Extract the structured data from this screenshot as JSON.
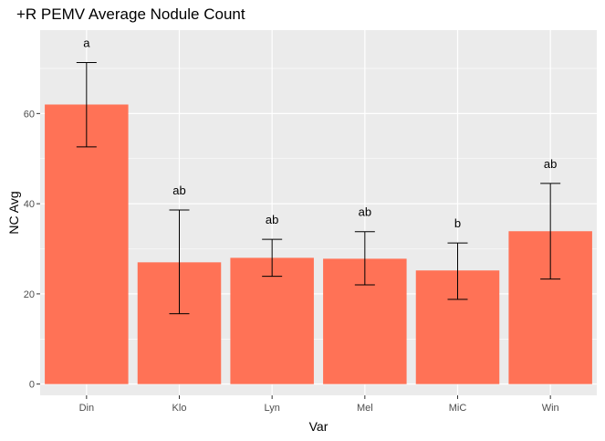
{
  "chart_data": {
    "type": "bar",
    "title": "+R PEMV Average Nodule Count",
    "xlabel": "Var",
    "ylabel": "NC Avg",
    "categories": [
      "Din",
      "Klo",
      "Lyn",
      "Mel",
      "MiC",
      "Win"
    ],
    "values": [
      62.0,
      27.0,
      28.0,
      27.8,
      25.2,
      33.9
    ],
    "error_low": [
      52.6,
      15.6,
      23.9,
      22.0,
      18.8,
      23.3
    ],
    "error_high": [
      71.3,
      38.6,
      32.1,
      33.8,
      31.3,
      44.5
    ],
    "letters": [
      "a",
      "ab",
      "ab",
      "ab",
      "b",
      "ab"
    ],
    "ylim": [
      -2.5,
      78.5
    ],
    "yticks": [
      0,
      20,
      40,
      60
    ],
    "grid": true,
    "colors": {
      "bar": "#ff7256",
      "panel": "#ebebeb",
      "grid": "#ffffff",
      "error": "#000000"
    }
  }
}
